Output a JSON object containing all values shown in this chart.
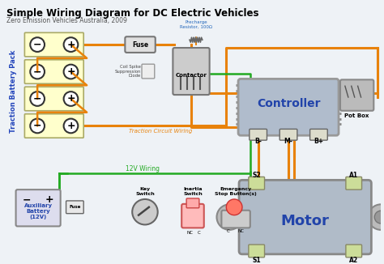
{
  "title": "Simple Wiring Diagram for DC Electric Vehicles",
  "subtitle": "Zero Emission Vehicles Australia, 2009",
  "bg_color": "#eef2f6",
  "title_color": "#000000",
  "subtitle_color": "#555555",
  "orange_wire": "#e8820a",
  "green_wire": "#22aa22",
  "blue_wire": "#7799cc",
  "battery_fill": "#ffffcc",
  "battery_border": "#aaaa66",
  "controller_fill": "#b0bccc",
  "motor_fill": "#aabbcc",
  "aux_fill": "#dddddd",
  "traction_label_color": "#2244bb",
  "traction_circuit_label": "Traction Circuit Wiring",
  "wiring_12v_label": "12V Wiring",
  "controller_label": "Controller",
  "motor_label": "Motor",
  "pot_box_label": "Pot Box",
  "aux_battery_label": "Auxiliary\nBattery\n(12V)",
  "traction_battery_label": "Traction Battery Pack",
  "fuse_label": "Fuse",
  "contactor_label": "Contactor",
  "precharge_label": "Precharge\nResistor, 100Ω",
  "coil_label": "Coil Spike\nSuppression\nDiode",
  "key_label": "Key\nSwitch",
  "inertia_label": "Inertia\nSwitch",
  "emergency_label": "Emergency\nStop Button(s)",
  "bm_label": "B-",
  "mm_label": "M-",
  "bp_label": "B+",
  "s1_label": "S1",
  "s2_label": "S2",
  "a1_label": "A1",
  "a2_label": "A2",
  "nc_label": "NC",
  "c_label": "C"
}
